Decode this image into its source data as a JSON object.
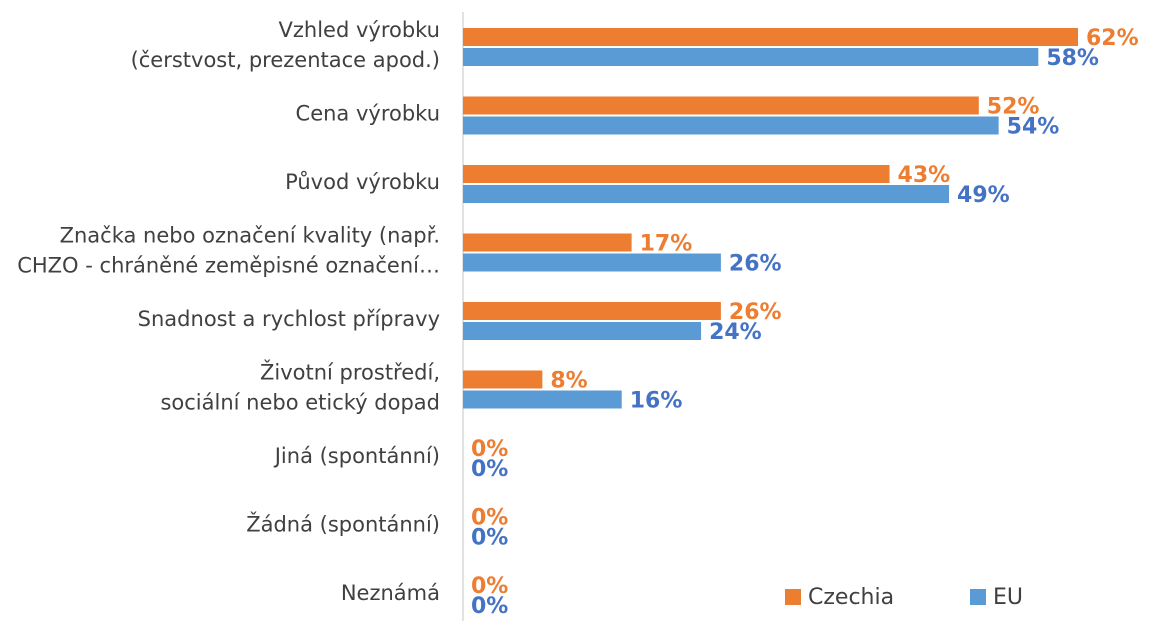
{
  "chart_data": {
    "type": "bar",
    "orientation": "horizontal",
    "categories": [
      [
        "Vzhled výrobku",
        "(čerstvost, prezentace apod.)"
      ],
      [
        "Cena výrobku"
      ],
      [
        "Původ výrobku"
      ],
      [
        "Značka nebo označení kvality (např.",
        "CHZO - chráněné zeměpisné označení…"
      ],
      [
        "Snadnost a rychlost přípravy"
      ],
      [
        "Životní prostředí,",
        "sociální nebo etický dopad"
      ],
      [
        "Jiná (spontánní)"
      ],
      [
        "Žádná (spontánní)"
      ],
      [
        "Neznámá"
      ]
    ],
    "series": [
      {
        "name": "Czechia",
        "color": "#ed7d31",
        "label_color": "#ed7d31",
        "values": [
          62,
          52,
          43,
          17,
          26,
          8,
          0,
          0,
          0
        ],
        "value_labels": [
          "62%",
          "52%",
          "43%",
          "17%",
          "26%",
          "8%",
          "0%",
          "0%",
          "0%"
        ]
      },
      {
        "name": "EU",
        "color": "#5b9bd5",
        "label_color": "#4472c4",
        "values": [
          58,
          54,
          49,
          26,
          24,
          16,
          0,
          0,
          0
        ],
        "value_labels": [
          "58%",
          "54%",
          "49%",
          "26%",
          "24%",
          "16%",
          "0%",
          "0%",
          "0%"
        ]
      }
    ],
    "legend": "bottom-right"
  }
}
